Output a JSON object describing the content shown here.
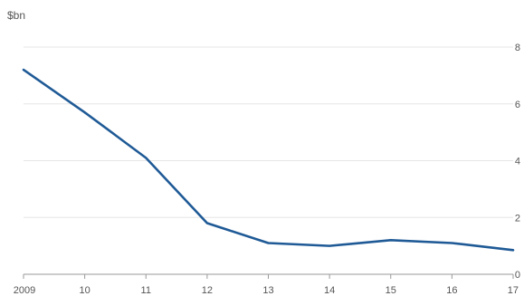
{
  "chart_data": {
    "type": "line",
    "title": "",
    "unit_label": "$bn",
    "xlabel": "",
    "ylabel": "",
    "x_tick_labels": [
      "2009",
      "10",
      "11",
      "12",
      "13",
      "14",
      "15",
      "16",
      "17"
    ],
    "x": [
      2009,
      2010,
      2011,
      2012,
      2013,
      2014,
      2015,
      2016,
      2017
    ],
    "y_ticks": [
      0,
      2,
      4,
      6,
      8
    ],
    "y_tick_labels": [
      "0",
      "2",
      "4",
      "6",
      "8"
    ],
    "ylim": [
      0,
      8
    ],
    "grid": true,
    "series": [
      {
        "values": [
          7.2,
          5.7,
          4.1,
          1.8,
          1.1,
          1.0,
          1.2,
          1.1,
          0.85
        ]
      }
    ]
  },
  "colors": {
    "line": "#1f5a96",
    "grid": "#e6e6e6",
    "axis": "#999999",
    "text": "#555555"
  }
}
